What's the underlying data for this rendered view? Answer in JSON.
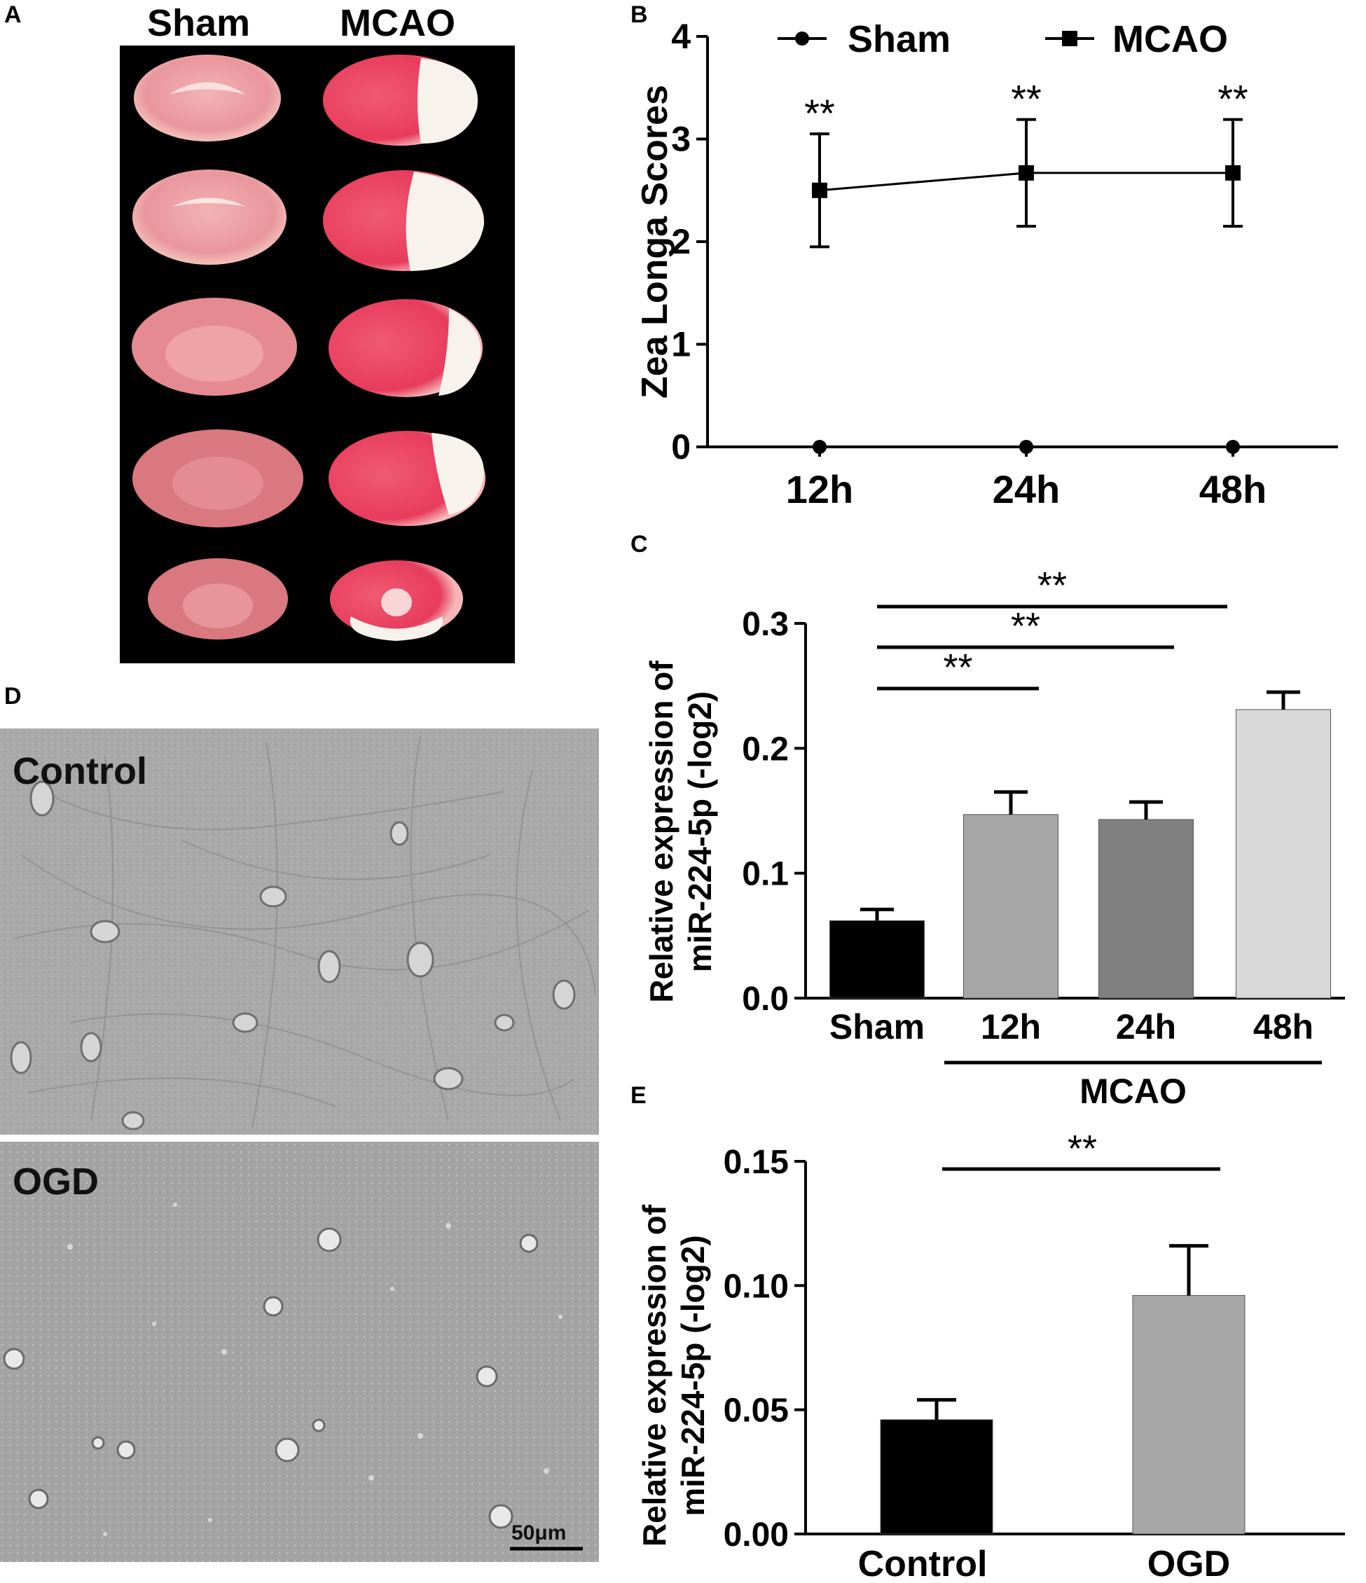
{
  "panels": {
    "a": {
      "letter": "A",
      "columns": [
        "Sham",
        "MCAO"
      ],
      "slice_rows": 5
    },
    "b": {
      "letter": "B",
      "chart_data": {
        "type": "line",
        "title": "",
        "xlabel": "",
        "ylabel": "Zea Longa Scores",
        "categories": [
          "12h",
          "24h",
          "48h"
        ],
        "ylim": [
          0,
          4
        ],
        "yticks": [
          0,
          1,
          2,
          3,
          4
        ],
        "series": [
          {
            "name": "Sham",
            "marker": "circle",
            "values": [
              0,
              0,
              0
            ],
            "errors": [
              0,
              0,
              0
            ]
          },
          {
            "name": "MCAO",
            "marker": "square",
            "values": [
              2.5,
              2.67,
              2.67
            ],
            "errors": [
              0.55,
              0.52,
              0.52
            ]
          }
        ],
        "annotations": [
          "**",
          "**",
          "**"
        ],
        "legend_position": "top"
      }
    },
    "c": {
      "letter": "C",
      "chart_data": {
        "type": "bar",
        "title": "",
        "xlabel": "",
        "ylabel_line1": "Relative expression of",
        "ylabel_line2": "miR-224-5p (-log2)",
        "categories": [
          "Sham",
          "12h",
          "24h",
          "48h"
        ],
        "values": [
          0.062,
          0.147,
          0.143,
          0.231
        ],
        "errors": [
          0.009,
          0.018,
          0.014,
          0.014
        ],
        "colors": [
          "#000000",
          "#a6a6a6",
          "#808080",
          "#d9d9d9"
        ],
        "ylim": [
          0,
          0.3
        ],
        "yticks": [
          "0.0",
          "0.1",
          "0.2",
          "0.3"
        ],
        "group_label": "MCAO",
        "significance": [
          "**",
          "**",
          "**"
        ]
      }
    },
    "d": {
      "letter": "D",
      "labels": [
        "Control",
        "OGD"
      ],
      "scale_bar": "50μm"
    },
    "e": {
      "letter": "E",
      "chart_data": {
        "type": "bar",
        "title": "",
        "xlabel": "",
        "ylabel_line1": "Relative expression of",
        "ylabel_line2": "miR-224-5p (-log2)",
        "categories": [
          "Control",
          "OGD"
        ],
        "values": [
          0.046,
          0.096
        ],
        "errors": [
          0.008,
          0.02
        ],
        "colors": [
          "#000000",
          "#a6a6a6"
        ],
        "ylim": [
          0,
          0.15
        ],
        "yticks": [
          "0.00",
          "0.05",
          "0.10",
          "0.15"
        ],
        "significance": [
          "**"
        ]
      }
    }
  }
}
